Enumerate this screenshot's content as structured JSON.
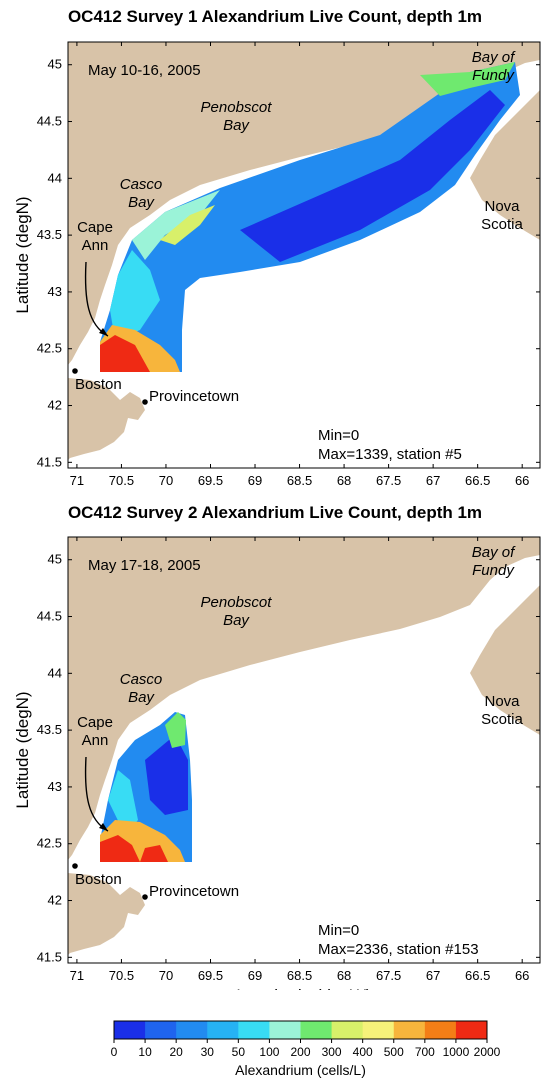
{
  "chart_data": [
    {
      "type": "heatmap",
      "title": "OC412 Survey 1 Alexandrium Live Count, depth 1m",
      "date_label": "May 10-16, 2005",
      "ylabel": "Latitude (degN)",
      "xlabel": "",
      "xlim": [
        71.1,
        65.8
      ],
      "ylim": [
        41.45,
        45.2
      ],
      "xticks": [
        "71",
        "70.5",
        "70",
        "69.5",
        "69",
        "68.5",
        "68",
        "67.5",
        "67",
        "66.5",
        "66"
      ],
      "yticks": [
        "41.5",
        "42",
        "42.5",
        "43",
        "43.5",
        "44",
        "44.5",
        "45"
      ],
      "place_labels": {
        "casco": [
          "Casco",
          "Bay"
        ],
        "penobscot": [
          "Penobscot",
          "Bay"
        ],
        "fundy": [
          "Bay of",
          "Fundy"
        ],
        "nova": [
          "Nova",
          "Scotia"
        ],
        "cape": [
          "Cape",
          "Ann"
        ],
        "boston": "Boston",
        "provincetown": "Provincetown"
      },
      "stats": [
        "Min=0",
        "Max=1339, station #5"
      ],
      "min_value": 0,
      "max_value": 1339,
      "max_station": "#5"
    },
    {
      "type": "heatmap",
      "title": "OC412 Survey 2 Alexandrium Live Count, depth 1m",
      "date_label": "May 17-18, 2005",
      "ylabel": "Latitude (degN)",
      "xlabel": "Longitude (degW)",
      "xlim": [
        71.1,
        65.8
      ],
      "ylim": [
        41.45,
        45.2
      ],
      "xticks": [
        "71",
        "70.5",
        "70",
        "69.5",
        "69",
        "68.5",
        "68",
        "67.5",
        "67",
        "66.5",
        "66"
      ],
      "yticks": [
        "41.5",
        "42",
        "42.5",
        "43",
        "43.5",
        "44",
        "44.5",
        "45"
      ],
      "place_labels": {
        "casco": [
          "Casco",
          "Bay"
        ],
        "penobscot": [
          "Penobscot",
          "Bay"
        ],
        "fundy": [
          "Bay of",
          "Fundy"
        ],
        "nova": [
          "Nova",
          "Scotia"
        ],
        "cape": [
          "Cape",
          "Ann"
        ],
        "boston": "Boston",
        "provincetown": "Provincetown"
      },
      "stats": [
        "Min=0",
        "Max=2336, station #153"
      ],
      "min_value": 0,
      "max_value": 2336,
      "max_station": "#153"
    }
  ],
  "colorbar": {
    "label": "Alexandrium (cells/L)",
    "ticks": [
      "0",
      "10",
      "20",
      "30",
      "50",
      "100",
      "200",
      "300",
      "400",
      "500",
      "700",
      "1000",
      "2000"
    ],
    "colors": [
      "#1a2fe8",
      "#1f64ee",
      "#228bf0",
      "#26b2f4",
      "#38dcf4",
      "#9bf3d8",
      "#6fe96f",
      "#d8f06a",
      "#f6f27a",
      "#f7b53c",
      "#f47e16",
      "#ef2a14"
    ]
  }
}
